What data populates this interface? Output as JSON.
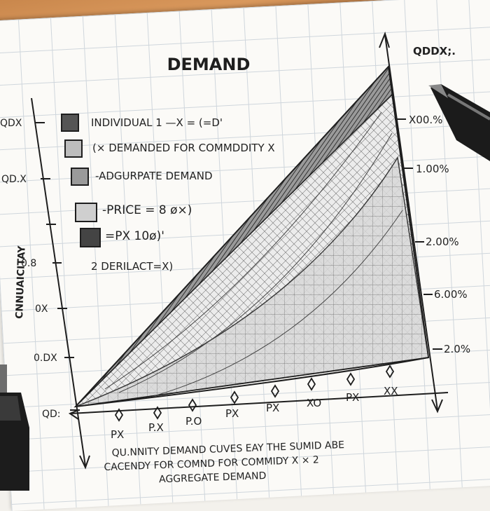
{
  "diagram": {
    "title": "DEMAND",
    "axis_top_label": "QDDX;.",
    "legend": [
      {
        "text": "INDIVIDUAL 1 —X = (=D'",
        "fill": "#555555"
      },
      {
        "text": "(× DEMANDED FOR COMMDDITY X",
        "fill": "#bdbdbd"
      },
      {
        "text": "-ADGURPATE DEMAND",
        "fill": "#9a9a9a"
      },
      {
        "text": "-PRICE = 8 ø×)",
        "fill": "#cfcfcf"
      },
      {
        "text": "=PX 10ø)'",
        "fill": "#444444"
      }
    ],
    "legend_extra": "2  DERILACT=X)",
    "left_ticks": [
      "QDX",
      "QD.X",
      "0.8",
      "0X",
      "0.DX",
      "QD:"
    ],
    "left_axis_label": "CNNUAICITAY",
    "right_ticks": [
      "X00.%",
      "1.00%",
      "2.00%",
      "6.00%",
      "2.0%"
    ],
    "bottom_ticks": [
      "PX",
      "P.X",
      "P.O",
      "PX",
      "PX",
      "XO",
      "PX",
      "XX"
    ],
    "caption_lines": [
      "QU.NNITY  DEMAND CUVES EAY THE SUMID ABE",
      "CACENDY FOR COMND  FOR COMMIDY X × 2",
      "AGGREGATE DEMAND"
    ],
    "colors": {
      "ink": "#1e1e1e",
      "desk": "#c9874c",
      "grid": "#cfd6dc",
      "paper": "#fbfaf7"
    }
  }
}
